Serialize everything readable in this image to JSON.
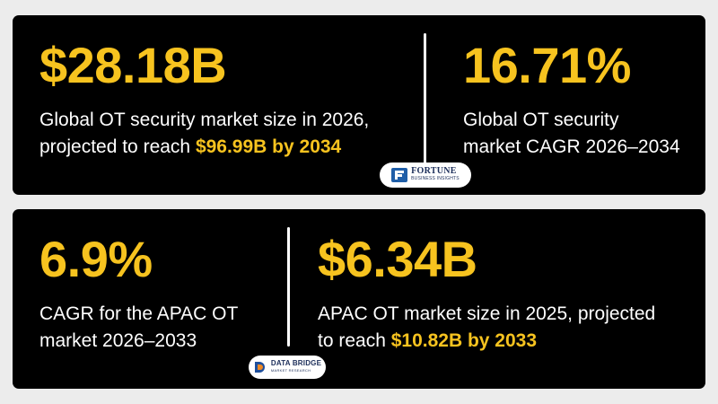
{
  "top": {
    "stat1": {
      "value": "$28.18B",
      "line1": "Global OT security market size in 2026,",
      "line2_prefix": "projected to reach ",
      "line2_highlight": "$96.99B by 2034"
    },
    "stat2": {
      "value": "16.71%",
      "line1": "Global OT security",
      "line2": "market CAGR 2026–2034"
    },
    "source": {
      "name": "FORTUNE",
      "sub": "BUSINESS INSIGHTS",
      "icon": "fortune-logo-icon"
    }
  },
  "bottom": {
    "stat1": {
      "value": "6.9%",
      "line1": "CAGR for the APAC OT",
      "line2": "market 2026–2033"
    },
    "stat2": {
      "value": "$6.34B",
      "line1": "APAC OT market size in 2025, projected",
      "line2_prefix": "to reach ",
      "line2_highlight": "$10.82B by 2033"
    },
    "source": {
      "name": "DATA BRIDGE",
      "sub": "MARKET RESEARCH",
      "icon": "data-bridge-logo-icon"
    }
  },
  "colors": {
    "accent": "#f7c31f",
    "panel": "#000000",
    "background": "#ececec",
    "text": "#ffffff"
  }
}
